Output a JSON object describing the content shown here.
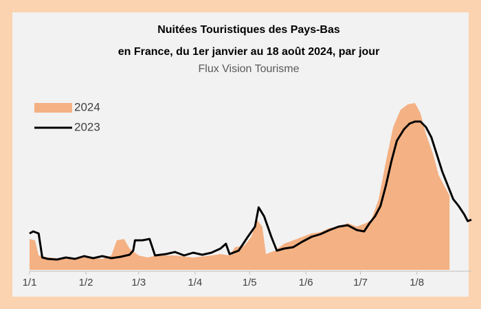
{
  "chart_data": {
    "type": "line",
    "title": [
      "Nuitées Touristiques des Pays-Bas",
      "en France, du 1er janvier au 18 août 2024, par jour"
    ],
    "subtitle": "Flux Vision Tourisme",
    "xlim": [
      0,
      243
    ],
    "ylim": [
      0,
      250
    ],
    "xticks": [
      {
        "value": 0,
        "label": "1/1"
      },
      {
        "value": 31,
        "label": "1/2"
      },
      {
        "value": 60,
        "label": "1/3"
      },
      {
        "value": 91,
        "label": "1/4"
      },
      {
        "value": 121,
        "label": "1/5"
      },
      {
        "value": 152,
        "label": "1/6"
      },
      {
        "value": 182,
        "label": "1/7"
      },
      {
        "value": 213,
        "label": "1/8"
      }
    ],
    "legend": "top-left",
    "series": [
      {
        "name": "2024",
        "kind": "area",
        "color": "#f4b183",
        "x": [
          0,
          3,
          5,
          10,
          20,
          30,
          40,
          45,
          48,
          52,
          55,
          60,
          65,
          70,
          80,
          90,
          100,
          105,
          110,
          113,
          118,
          122,
          125,
          128,
          130,
          135,
          140,
          145,
          150,
          155,
          160,
          165,
          170,
          175,
          180,
          185,
          188,
          192,
          196,
          200,
          204,
          208,
          212,
          215,
          218,
          222,
          225,
          228,
          231
        ],
        "values": [
          45,
          43,
          21,
          18,
          16,
          18,
          16,
          21,
          43,
          45,
          31,
          21,
          18,
          21,
          21,
          18,
          21,
          23,
          21,
          33,
          35,
          48,
          73,
          63,
          23,
          28,
          38,
          43,
          48,
          53,
          55,
          61,
          63,
          68,
          63,
          68,
          73,
          103,
          158,
          208,
          233,
          241,
          243,
          228,
          198,
          168,
          138,
          123,
          108
        ]
      },
      {
        "name": "2023",
        "kind": "line",
        "color": "#000000",
        "x": [
          0,
          2,
          5,
          7,
          10,
          15,
          20,
          25,
          30,
          35,
          40,
          45,
          50,
          55,
          57,
          58,
          62,
          66,
          69,
          75,
          80,
          85,
          90,
          95,
          100,
          105,
          108,
          110,
          115,
          120,
          124,
          126,
          129,
          133,
          136,
          140,
          145,
          150,
          155,
          160,
          165,
          170,
          175,
          180,
          184,
          187,
          190,
          193,
          196,
          199,
          202,
          206,
          209,
          212,
          215,
          218,
          221,
          224,
          227,
          230,
          233,
          236,
          239,
          241,
          243
        ],
        "values": [
          53,
          56,
          53,
          18,
          16,
          15,
          18,
          16,
          20,
          17,
          20,
          17,
          19,
          22,
          28,
          43,
          43,
          45,
          21,
          23,
          26,
          21,
          25,
          22,
          25,
          31,
          38,
          23,
          28,
          48,
          63,
          91,
          78,
          48,
          28,
          31,
          33,
          41,
          48,
          52,
          58,
          63,
          65,
          58,
          56,
          68,
          78,
          93,
          123,
          158,
          188,
          205,
          213,
          216,
          216,
          208,
          193,
          168,
          143,
          123,
          103,
          93,
          81,
          71,
          73
        ]
      }
    ]
  }
}
